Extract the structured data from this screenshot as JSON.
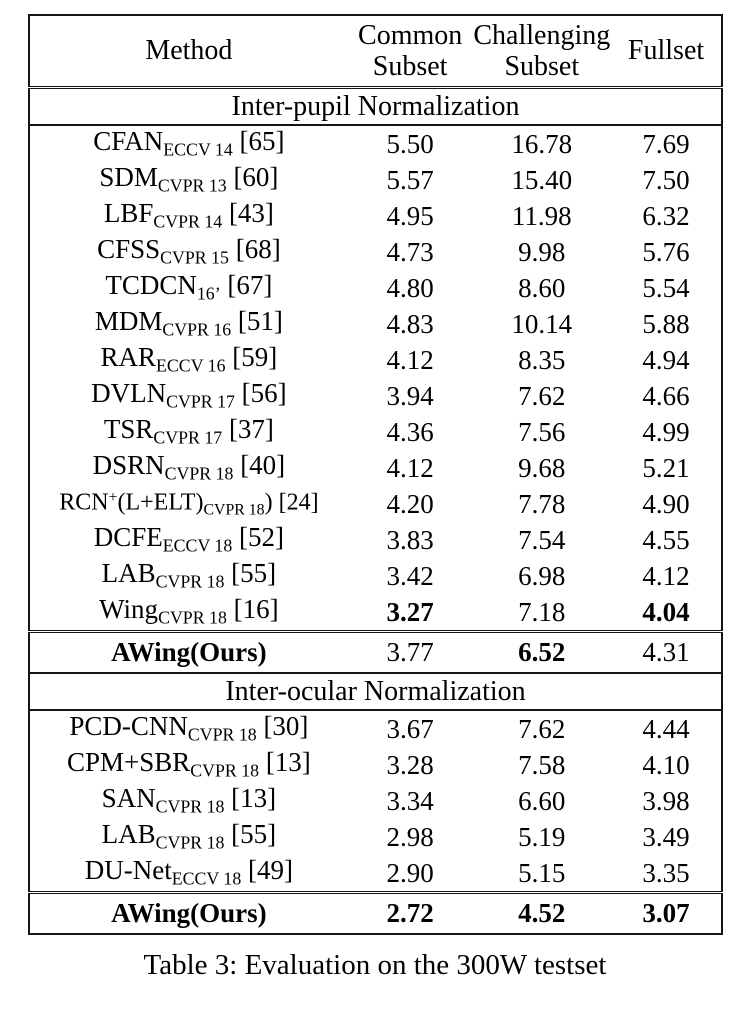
{
  "page": {
    "caption": "Table 3: Evaluation on the 300W testset"
  },
  "table": {
    "header": {
      "columns": [
        "Method",
        "Common\nSubset",
        "Challenging\nSubset",
        "Fullset"
      ]
    },
    "sections": [
      {
        "title": "Inter-pupil Normalization",
        "rows": [
          {
            "name": [
              {
                "t": "CFAN"
              },
              {
                "t": "ECCV 14",
                "s": "sub"
              },
              {
                "t": " [65]"
              }
            ],
            "values": [
              "5.50",
              "16.78",
              "7.69"
            ],
            "bold_values": [
              false,
              false,
              false
            ],
            "bold_name": false,
            "highlight": false
          },
          {
            "name": [
              {
                "t": "SDM"
              },
              {
                "t": "CVPR 13",
                "s": "sub"
              },
              {
                "t": " [60]"
              }
            ],
            "values": [
              "5.57",
              "15.40",
              "7.50"
            ],
            "bold_values": [
              false,
              false,
              false
            ],
            "bold_name": false,
            "highlight": false
          },
          {
            "name": [
              {
                "t": "LBF"
              },
              {
                "t": "CVPR 14",
                "s": "sub"
              },
              {
                "t": " [43]"
              }
            ],
            "values": [
              "4.95",
              "11.98",
              "6.32"
            ],
            "bold_values": [
              false,
              false,
              false
            ],
            "bold_name": false,
            "highlight": false
          },
          {
            "name": [
              {
                "t": "CFSS"
              },
              {
                "t": "CVPR 15",
                "s": "sub"
              },
              {
                "t": " [68]"
              }
            ],
            "values": [
              "4.73",
              "9.98",
              "5.76"
            ],
            "bold_values": [
              false,
              false,
              false
            ],
            "bold_name": false,
            "highlight": false
          },
          {
            "name": [
              {
                "t": "TCDCN"
              },
              {
                "t": "16’",
                "s": "sub"
              },
              {
                "t": " [67]"
              }
            ],
            "values": [
              "4.80",
              "8.60",
              "5.54"
            ],
            "bold_values": [
              false,
              false,
              false
            ],
            "bold_name": false,
            "highlight": false
          },
          {
            "name": [
              {
                "t": "MDM"
              },
              {
                "t": "CVPR 16",
                "s": "sub"
              },
              {
                "t": " [51]"
              }
            ],
            "values": [
              "4.83",
              "10.14",
              "5.88"
            ],
            "bold_values": [
              false,
              false,
              false
            ],
            "bold_name": false,
            "highlight": false
          },
          {
            "name": [
              {
                "t": "RAR"
              },
              {
                "t": "ECCV 16",
                "s": "sub"
              },
              {
                "t": " [59]"
              }
            ],
            "values": [
              "4.12",
              "8.35",
              "4.94"
            ],
            "bold_values": [
              false,
              false,
              false
            ],
            "bold_name": false,
            "highlight": false
          },
          {
            "name": [
              {
                "t": "DVLN"
              },
              {
                "t": "CVPR 17",
                "s": "sub"
              },
              {
                "t": " [56]"
              }
            ],
            "values": [
              "3.94",
              "7.62",
              "4.66"
            ],
            "bold_values": [
              false,
              false,
              false
            ],
            "bold_name": false,
            "highlight": false
          },
          {
            "name": [
              {
                "t": "TSR"
              },
              {
                "t": "CVPR 17",
                "s": "sub"
              },
              {
                "t": " [37]"
              }
            ],
            "values": [
              "4.36",
              "7.56",
              "4.99"
            ],
            "bold_values": [
              false,
              false,
              false
            ],
            "bold_name": false,
            "highlight": false
          },
          {
            "name": [
              {
                "t": "DSRN"
              },
              {
                "t": "CVPR 18",
                "s": "sub"
              },
              {
                "t": " [40]"
              }
            ],
            "values": [
              "4.12",
              "9.68",
              "5.21"
            ],
            "bold_values": [
              false,
              false,
              false
            ],
            "bold_name": false,
            "highlight": false
          },
          {
            "name": [
              {
                "t": "RCN"
              },
              {
                "t": "+",
                "s": "sup"
              },
              {
                "t": "(L+ELT)"
              },
              {
                "t": "CVPR 18",
                "s": "sub"
              },
              {
                "t": ") [24]"
              }
            ],
            "values": [
              "4.20",
              "7.78",
              "4.90"
            ],
            "bold_values": [
              false,
              false,
              false
            ],
            "bold_name": false,
            "highlight": false,
            "compact": true
          },
          {
            "name": [
              {
                "t": "DCFE"
              },
              {
                "t": "ECCV 18",
                "s": "sub"
              },
              {
                "t": " [52]"
              }
            ],
            "values": [
              "3.83",
              "7.54",
              "4.55"
            ],
            "bold_values": [
              false,
              false,
              false
            ],
            "bold_name": false,
            "highlight": false
          },
          {
            "name": [
              {
                "t": "LAB"
              },
              {
                "t": "CVPR 18",
                "s": "sub"
              },
              {
                "t": " [55]"
              }
            ],
            "values": [
              "3.42",
              "6.98",
              "4.12"
            ],
            "bold_values": [
              false,
              false,
              false
            ],
            "bold_name": false,
            "highlight": false
          },
          {
            "name": [
              {
                "t": "Wing"
              },
              {
                "t": "CVPR 18",
                "s": "sub"
              },
              {
                "t": " [16]"
              }
            ],
            "values": [
              "3.27",
              "7.18",
              "4.04"
            ],
            "bold_values": [
              true,
              false,
              true
            ],
            "bold_name": false,
            "highlight": false
          },
          {
            "name": [
              {
                "t": "AWing(Ours)"
              }
            ],
            "values": [
              "3.77",
              "6.52",
              "4.31"
            ],
            "bold_values": [
              false,
              true,
              false
            ],
            "bold_name": true,
            "highlight": true
          }
        ]
      },
      {
        "title": "Inter-ocular Normalization",
        "rows": [
          {
            "name": [
              {
                "t": "PCD-CNN"
              },
              {
                "t": "CVPR 18",
                "s": "sub"
              },
              {
                "t": " [30]"
              }
            ],
            "values": [
              "3.67",
              "7.62",
              "4.44"
            ],
            "bold_values": [
              false,
              false,
              false
            ],
            "bold_name": false,
            "highlight": false
          },
          {
            "name": [
              {
                "t": "CPM+SBR"
              },
              {
                "t": "CVPR 18",
                "s": "sub"
              },
              {
                "t": " [13]"
              }
            ],
            "values": [
              "3.28",
              "7.58",
              "4.10"
            ],
            "bold_values": [
              false,
              false,
              false
            ],
            "bold_name": false,
            "highlight": false
          },
          {
            "name": [
              {
                "t": "SAN"
              },
              {
                "t": "CVPR 18",
                "s": "sub"
              },
              {
                "t": " [13]"
              }
            ],
            "values": [
              "3.34",
              "6.60",
              "3.98"
            ],
            "bold_values": [
              false,
              false,
              false
            ],
            "bold_name": false,
            "highlight": false
          },
          {
            "name": [
              {
                "t": "LAB"
              },
              {
                "t": "CVPR 18",
                "s": "sub"
              },
              {
                "t": " [55]"
              }
            ],
            "values": [
              "2.98",
              "5.19",
              "3.49"
            ],
            "bold_values": [
              false,
              false,
              false
            ],
            "bold_name": false,
            "highlight": false
          },
          {
            "name": [
              {
                "t": "DU-Net"
              },
              {
                "t": "ECCV 18",
                "s": "sub"
              },
              {
                "t": " [49]"
              }
            ],
            "values": [
              "2.90",
              "5.15",
              "3.35"
            ],
            "bold_values": [
              false,
              false,
              false
            ],
            "bold_name": false,
            "highlight": false
          },
          {
            "name": [
              {
                "t": "AWing(Ours)"
              }
            ],
            "values": [
              "2.72",
              "4.52",
              "3.07"
            ],
            "bold_values": [
              true,
              true,
              true
            ],
            "bold_name": true,
            "highlight": true
          }
        ]
      }
    ]
  }
}
